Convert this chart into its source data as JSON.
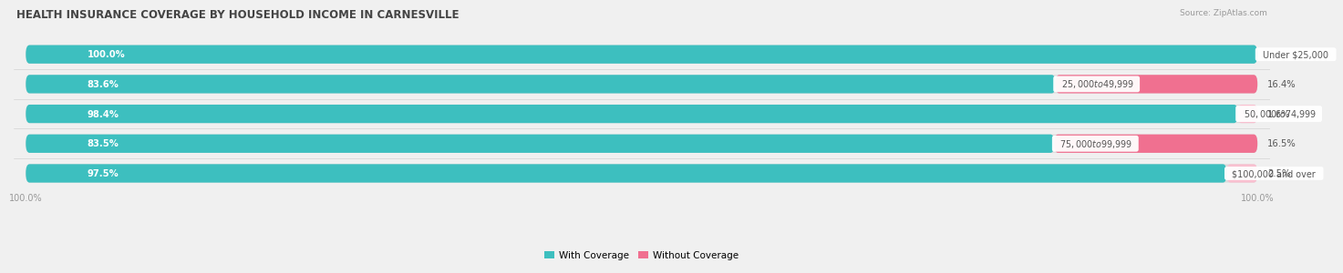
{
  "title": "HEALTH INSURANCE COVERAGE BY HOUSEHOLD INCOME IN CARNESVILLE",
  "source": "Source: ZipAtlas.com",
  "categories": [
    "Under $25,000",
    "$25,000 to $49,999",
    "$50,000 to $74,999",
    "$75,000 to $99,999",
    "$100,000 and over"
  ],
  "with_coverage": [
    100.0,
    83.6,
    98.4,
    83.5,
    97.5
  ],
  "without_coverage": [
    0.0,
    16.4,
    1.6,
    16.5,
    2.5
  ],
  "color_with": "#3DBFBF",
  "color_without": "#F07090",
  "color_without_light": "#F9C0D0",
  "background_color": "#f0f0f0",
  "bar_bg_color": "#e0e0e0",
  "bar_row_bg": "#e8e8e8",
  "title_fontsize": 8.5,
  "label_fontsize": 7.2,
  "tick_fontsize": 7,
  "legend_fontsize": 7.5,
  "source_fontsize": 6.5
}
